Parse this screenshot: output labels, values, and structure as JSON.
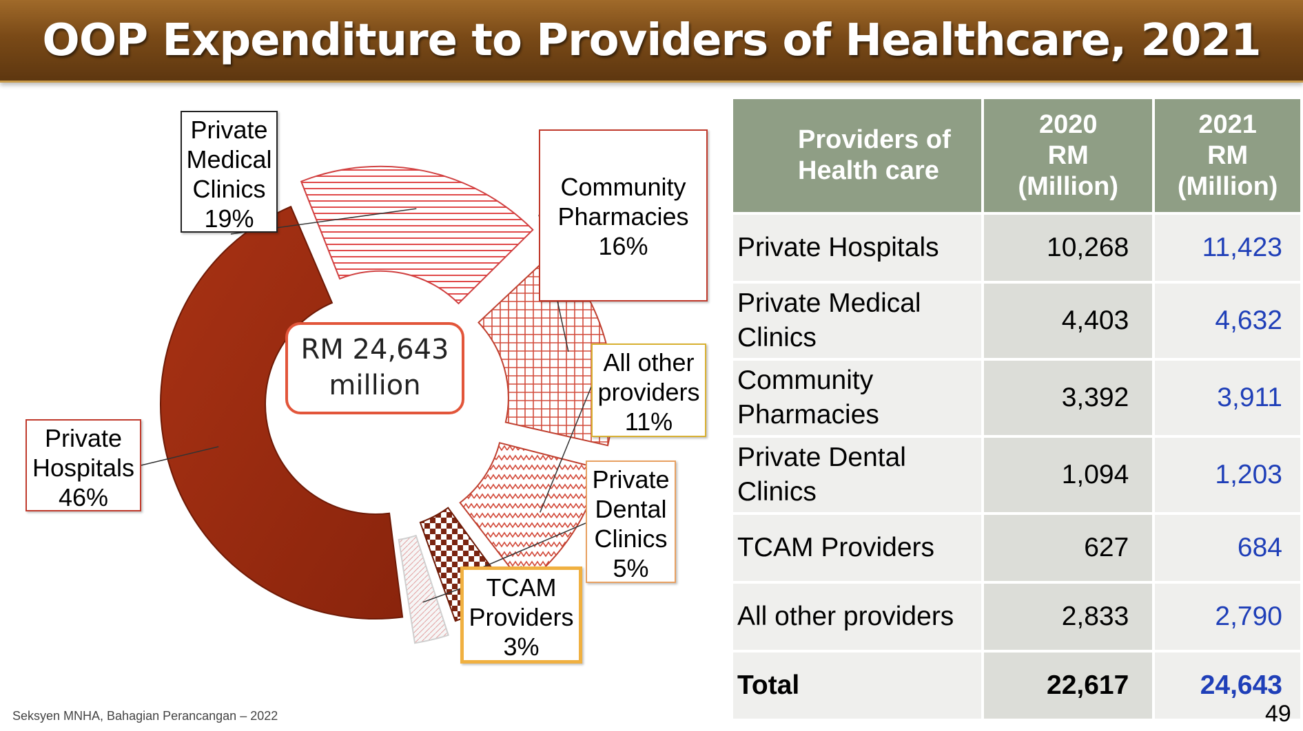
{
  "title": "OOP Expenditure to Providers of Healthcare, 2021",
  "center_label": {
    "line1": "RM 24,643",
    "line2": "million"
  },
  "chart_data": {
    "type": "pie",
    "title": "OOP Expenditure to Providers of Healthcare, 2021",
    "style": "donut",
    "total_label": "RM 24,643 million",
    "slices": [
      {
        "name": "Private Hospitals",
        "percent": 46,
        "label_lines": [
          "Private",
          "Hospitals",
          "46%"
        ],
        "color": "#9a2a10",
        "pattern": "solid"
      },
      {
        "name": "Private Medical Clinics",
        "percent": 19,
        "label_lines": [
          "Private",
          "Medical",
          "Clinics",
          "19%"
        ],
        "color": "#e05050",
        "pattern": "horizontal-lines"
      },
      {
        "name": "Community Pharmacies",
        "percent": 16,
        "label_lines": [
          "Community",
          "Pharmacies",
          "16%"
        ],
        "color": "#d24a3a",
        "pattern": "grid"
      },
      {
        "name": "All other providers",
        "percent": 11,
        "label_lines": [
          "All other",
          "providers",
          "11%"
        ],
        "color": "#d24a3a",
        "pattern": "zigzag"
      },
      {
        "name": "Private Dental Clinics",
        "percent": 5,
        "label_lines": [
          "Private",
          "Dental",
          "Clinics",
          "5%"
        ],
        "color": "#7a2410",
        "pattern": "checker"
      },
      {
        "name": "TCAM Providers",
        "percent": 3,
        "label_lines": [
          "TCAM",
          "Providers",
          "3%"
        ],
        "color": "#e07070",
        "pattern": "light-diagonal"
      }
    ]
  },
  "table": {
    "headers": {
      "provider": [
        "Providers of",
        "Health care"
      ],
      "y2020": [
        "2020",
        "RM",
        "(Million)"
      ],
      "y2021": [
        "2021",
        "RM",
        "(Million)"
      ]
    },
    "rows": [
      {
        "name": "Private Hospitals",
        "v2020": "10,268",
        "v2021": "11,423"
      },
      {
        "name": "Private Medical Clinics",
        "v2020": "4,403",
        "v2021": "4,632"
      },
      {
        "name": "Community Pharmacies",
        "v2020": "3,392",
        "v2021": "3,911"
      },
      {
        "name": "Private Dental Clinics",
        "v2020": "1,094",
        "v2021": "1,203"
      },
      {
        "name": "TCAM Providers",
        "v2020": "627",
        "v2021": "684"
      },
      {
        "name": "All other providers",
        "v2020": "2,833",
        "v2021": "2,790"
      }
    ],
    "total": {
      "name": "Total",
      "v2020": "22,617",
      "v2021": "24,643"
    }
  },
  "footer": {
    "source": "Seksyen MNHA, Bahagian Perancangan – 2022",
    "page": "49"
  },
  "colors": {
    "title_bar": "#7a4a17",
    "table_header": "#8f9e85",
    "value_2021": "#1f3fb8",
    "center_border": "#e2553a"
  }
}
